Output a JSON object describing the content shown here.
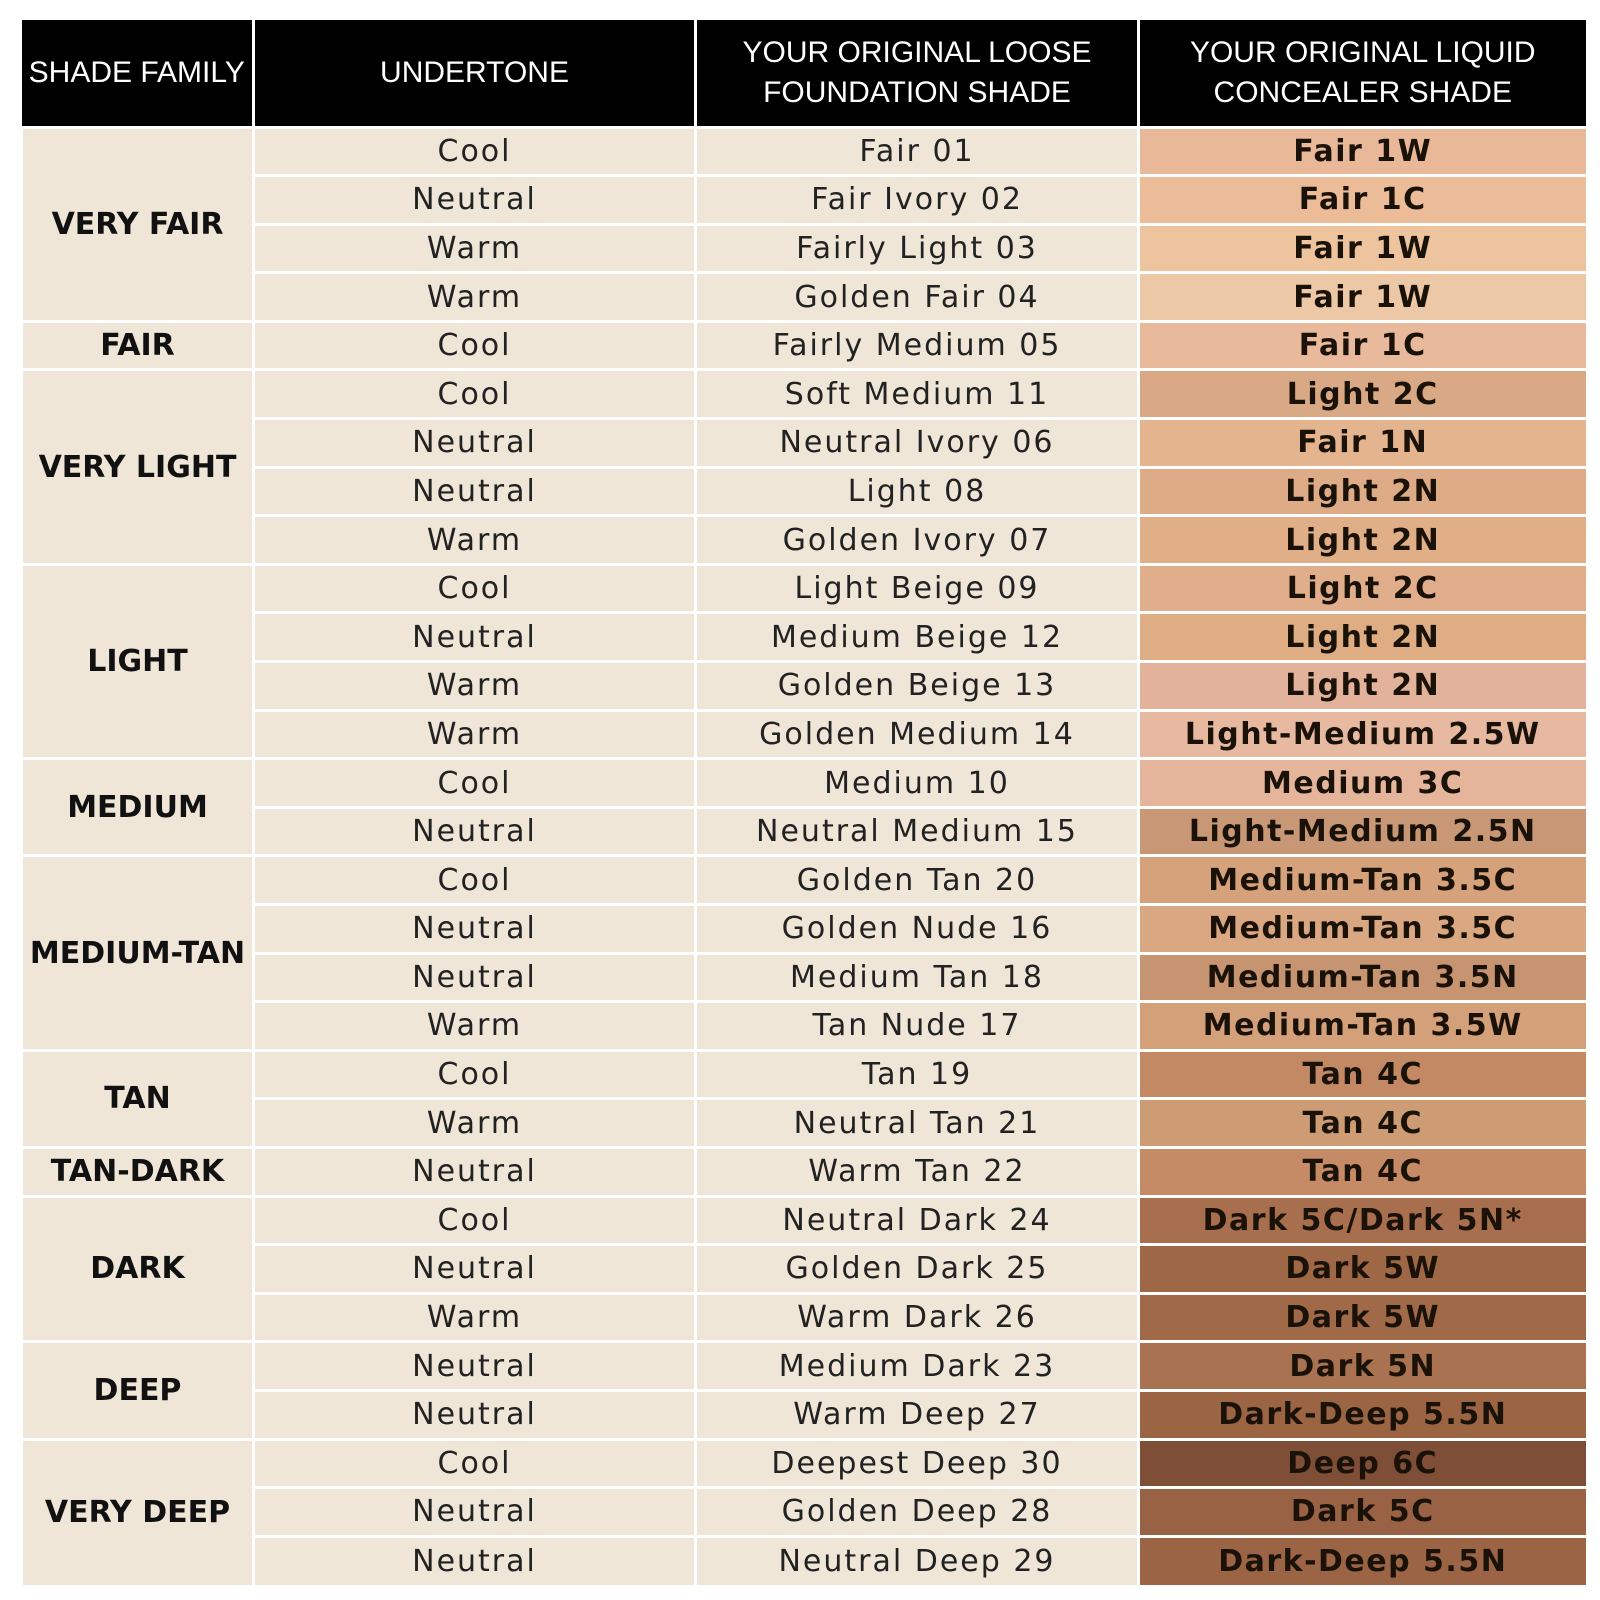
{
  "headers": {
    "family": "SHADE FAMILY",
    "undertone": "UNDERTONE",
    "foundation": "YOUR ORIGINAL LOOSE FOUNDATION SHADE",
    "concealer": "YOUR ORIGINAL LIQUID CONCEALER SHADE"
  },
  "colors": {
    "header_background": "#000000",
    "header_text": "#ffffff",
    "cell_background": "#efe6d7"
  },
  "groups": [
    {
      "family": "VERY FAIR",
      "rows": [
        {
          "undertone": "Cool",
          "foundation": "Fair 01",
          "concealer": "Fair 1W",
          "swatch": "#e8b898"
        },
        {
          "undertone": "Neutral",
          "foundation": "Fair Ivory 02",
          "concealer": "Fair 1C",
          "swatch": "#ecbc98"
        },
        {
          "undertone": "Warm",
          "foundation": "Fairly Light 03",
          "concealer": "Fair 1W",
          "swatch": "#eec49f"
        },
        {
          "undertone": "Warm",
          "foundation": "Golden Fair 04",
          "concealer": "Fair 1W",
          "swatch": "#ecc8a6"
        }
      ]
    },
    {
      "family": "FAIR",
      "rows": [
        {
          "undertone": "Cool",
          "foundation": "Fairly Medium 05",
          "concealer": "Fair 1C",
          "swatch": "#e8b99b"
        }
      ]
    },
    {
      "family": "VERY LIGHT",
      "rows": [
        {
          "undertone": "Cool",
          "foundation": "Soft Medium 11",
          "concealer": "Light 2C",
          "swatch": "#d9a985"
        },
        {
          "undertone": "Neutral",
          "foundation": "Neutral Ivory 06",
          "concealer": "Fair 1N",
          "swatch": "#e4b48e"
        },
        {
          "undertone": "Neutral",
          "foundation": "Light 08",
          "concealer": "Light 2N",
          "swatch": "#ddab86"
        },
        {
          "undertone": "Warm",
          "foundation": "Golden Ivory 07",
          "concealer": "Light 2N",
          "swatch": "#e0af88"
        }
      ]
    },
    {
      "family": "LIGHT",
      "rows": [
        {
          "undertone": "Cool",
          "foundation": "Light Beige 09",
          "concealer": "Light 2C",
          "swatch": "#e1ae8c"
        },
        {
          "undertone": "Neutral",
          "foundation": "Medium Beige 12",
          "concealer": "Light 2N",
          "swatch": "#dfad84"
        },
        {
          "undertone": "Warm",
          "foundation": "Golden Beige 13",
          "concealer": "Light 2N",
          "swatch": "#e2b39a"
        },
        {
          "undertone": "Warm",
          "foundation": "Golden Medium 14",
          "concealer": "Light-Medium 2.5W",
          "swatch": "#e6b9a0"
        }
      ]
    },
    {
      "family": "MEDIUM",
      "rows": [
        {
          "undertone": "Cool",
          "foundation": "Medium 10",
          "concealer": "Medium 3C",
          "swatch": "#e4b59b"
        },
        {
          "undertone": "Neutral",
          "foundation": "Neutral Medium 15",
          "concealer": "Light-Medium 2.5N",
          "swatch": "#c89775"
        }
      ]
    },
    {
      "family": "MEDIUM-TAN",
      "rows": [
        {
          "undertone": "Cool",
          "foundation": "Golden Tan 20",
          "concealer": "Medium-Tan 3.5C",
          "swatch": "#d6a27c"
        },
        {
          "undertone": "Neutral",
          "foundation": "Golden Nude 16",
          "concealer": "Medium-Tan 3.5C",
          "swatch": "#d9a883"
        },
        {
          "undertone": "Neutral",
          "foundation": "Medium Tan 18",
          "concealer": "Medium-Tan 3.5N",
          "swatch": "#c79472"
        },
        {
          "undertone": "Warm",
          "foundation": "Tan Nude 17",
          "concealer": "Medium-Tan 3.5W",
          "swatch": "#d3a07a"
        }
      ]
    },
    {
      "family": "TAN",
      "rows": [
        {
          "undertone": "Cool",
          "foundation": "Tan 19",
          "concealer": "Tan 4C",
          "swatch": "#c38964"
        },
        {
          "undertone": "Warm",
          "foundation": "Neutral Tan 21",
          "concealer": "Tan 4C",
          "swatch": "#cd9c74"
        }
      ]
    },
    {
      "family": "TAN-DARK",
      "rows": [
        {
          "undertone": "Neutral",
          "foundation": "Warm Tan 22",
          "concealer": "Tan 4C",
          "swatch": "#c58b67"
        }
      ]
    },
    {
      "family": "DARK",
      "rows": [
        {
          "undertone": "Cool",
          "foundation": "Neutral Dark 24",
          "concealer": "Dark 5C/Dark 5N*",
          "swatch": "#a86f4f"
        },
        {
          "undertone": "Neutral",
          "foundation": "Golden Dark 25",
          "concealer": "Dark 5W",
          "swatch": "#9e6745"
        },
        {
          "undertone": "Warm",
          "foundation": "Warm Dark 26",
          "concealer": "Dark 5W",
          "swatch": "#a06a49"
        }
      ]
    },
    {
      "family": "DEEP",
      "rows": [
        {
          "undertone": "Neutral",
          "foundation": "Medium Dark 23",
          "concealer": "Dark 5N",
          "swatch": "#a97352"
        },
        {
          "undertone": "Neutral",
          "foundation": "Warm Deep 27",
          "concealer": "Dark-Deep 5.5N",
          "swatch": "#9b6443"
        }
      ]
    },
    {
      "family": "VERY DEEP",
      "rows": [
        {
          "undertone": "Cool",
          "foundation": "Deepest Deep 30",
          "concealer": "Deep 6C",
          "swatch": "#7e4e37"
        },
        {
          "undertone": "Neutral",
          "foundation": "Golden Deep 28",
          "concealer": "Dark 5C",
          "swatch": "#9a6244"
        },
        {
          "undertone": "Neutral",
          "foundation": "Neutral Deep 29",
          "concealer": "Dark-Deep 5.5N",
          "swatch": "#9b6445"
        }
      ]
    }
  ]
}
